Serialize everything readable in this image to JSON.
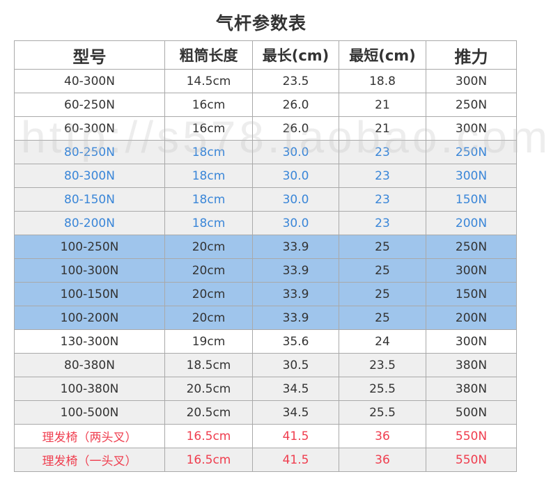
{
  "title": "气杆参数表",
  "watermark": "http://s578.taobao.com",
  "columns": [
    "型号",
    "粗筒长度",
    "最长(cm)",
    "最短(cm)",
    "推力"
  ],
  "rows": [
    {
      "style": "white",
      "cells": [
        "40-300N",
        "14.5cm",
        "23.5",
        "18.8",
        "300N"
      ]
    },
    {
      "style": "white",
      "cells": [
        "60-250N",
        "16cm",
        "26.0",
        "21",
        "250N"
      ]
    },
    {
      "style": "white",
      "cells": [
        "60-300N",
        "16cm",
        "26.0",
        "21",
        "300N"
      ]
    },
    {
      "style": "blue",
      "cells": [
        "80-250N",
        "18cm",
        "30.0",
        "23",
        "250N"
      ]
    },
    {
      "style": "blue",
      "cells": [
        "80-300N",
        "18cm",
        "30.0",
        "23",
        "300N"
      ]
    },
    {
      "style": "blue",
      "cells": [
        "80-150N",
        "18cm",
        "30.0",
        "23",
        "150N"
      ]
    },
    {
      "style": "blue",
      "cells": [
        "80-200N",
        "18cm",
        "30.0",
        "23",
        "200N"
      ]
    },
    {
      "style": "hl",
      "cells": [
        "100-250N",
        "20cm",
        "33.9",
        "25",
        "250N"
      ]
    },
    {
      "style": "hl",
      "cells": [
        "100-300N",
        "20cm",
        "33.9",
        "25",
        "300N"
      ]
    },
    {
      "style": "hl",
      "cells": [
        "100-150N",
        "20cm",
        "33.9",
        "25",
        "150N"
      ]
    },
    {
      "style": "hl",
      "cells": [
        "100-200N",
        "20cm",
        "33.9",
        "25",
        "200N"
      ]
    },
    {
      "style": "white",
      "cells": [
        "130-300N",
        "19cm",
        "35.6",
        "24",
        "300N"
      ]
    },
    {
      "style": "grey",
      "cells": [
        "80-380N",
        "18.5cm",
        "30.5",
        "23.5",
        "380N"
      ]
    },
    {
      "style": "grey",
      "cells": [
        "100-380N",
        "20.5cm",
        "34.5",
        "25.5",
        "380N"
      ]
    },
    {
      "style": "grey",
      "cells": [
        "100-500N",
        "20.5cm",
        "34.5",
        "25.5",
        "500N"
      ]
    },
    {
      "style": "red",
      "cells": [
        "理发椅（两头叉）",
        "16.5cm",
        "41.5",
        "36",
        "550N"
      ]
    },
    {
      "style": "redg",
      "cells": [
        "理发椅（一头叉）",
        "16.5cm",
        "41.5",
        "36",
        "550N"
      ]
    }
  ],
  "colors": {
    "blue_text": "#3a86d8",
    "highlight_bg": "#9fc5ec",
    "red_text": "#ef3d4e",
    "grey_bg": "#efefef",
    "border": "#a9a9a9"
  }
}
